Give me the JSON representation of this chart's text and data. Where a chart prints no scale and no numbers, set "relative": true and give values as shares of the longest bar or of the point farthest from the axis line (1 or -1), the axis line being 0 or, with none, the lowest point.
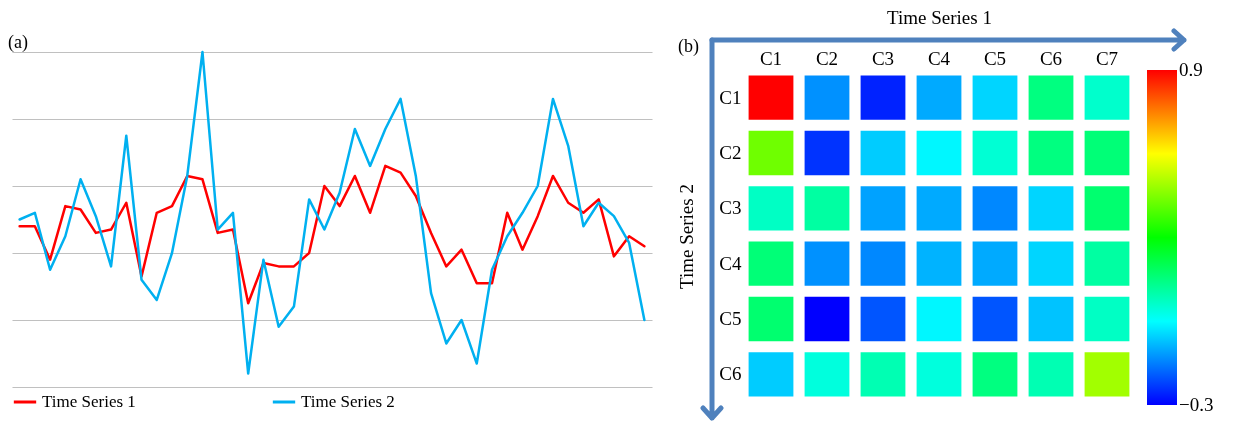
{
  "chart_data": [
    {
      "type": "line",
      "relative": true,
      "grid": "y",
      "legend": "bottom",
      "annotations": [
        "(a)"
      ],
      "categories": [
        null,
        null,
        null,
        null,
        null,
        null,
        null,
        null,
        null,
        null,
        null,
        null,
        null,
        null,
        null,
        null,
        null,
        null,
        null,
        null,
        null,
        null,
        null,
        null,
        null,
        null,
        null,
        null,
        null,
        null,
        null,
        null,
        null,
        null,
        null,
        null,
        null,
        null,
        null,
        null,
        null,
        null
      ],
      "series": [
        {
          "name": "Time Series 1",
          "color": "#ff0000",
          "values": [
            0.48,
            0.48,
            0.38,
            0.54,
            0.53,
            0.46,
            0.47,
            0.55,
            0.33,
            0.52,
            0.54,
            0.63,
            0.62,
            0.46,
            0.47,
            0.25,
            0.37,
            0.36,
            0.36,
            0.4,
            0.6,
            0.54,
            0.63,
            0.52,
            0.66,
            0.64,
            0.57,
            0.46,
            0.36,
            0.41,
            0.31,
            0.31,
            0.52,
            0.41,
            0.51,
            0.63,
            0.55,
            0.52,
            0.56,
            0.39,
            0.45,
            0.42
          ]
        },
        {
          "name": "Time Series 2",
          "color": "#00b0f0",
          "values": [
            0.5,
            0.52,
            0.35,
            0.45,
            0.62,
            0.51,
            0.36,
            0.75,
            0.32,
            0.26,
            0.4,
            0.63,
            1.0,
            0.47,
            0.52,
            0.04,
            0.38,
            0.18,
            0.24,
            0.56,
            0.47,
            0.58,
            0.77,
            0.66,
            0.77,
            0.86,
            0.63,
            0.28,
            0.13,
            0.2,
            0.07,
            0.35,
            0.45,
            0.52,
            0.6,
            0.86,
            0.72,
            0.48,
            0.55,
            0.51,
            0.43,
            0.2
          ]
        }
      ]
    },
    {
      "type": "heatmap",
      "xlabel": "Time Series 1",
      "ylabel": "Time Series 2",
      "annotations": [
        "(b)"
      ],
      "categories": [
        "C1",
        "C2",
        "C3",
        "C4",
        "C5",
        "C6",
        "C7"
      ],
      "y_categories": [
        "C1",
        "C2",
        "C3",
        "C4",
        "C5",
        "C6"
      ],
      "cells": [
        [
          0.9,
          -0.13,
          -0.26,
          -0.1,
          -0.05,
          0.15,
          0.06
        ],
        [
          0.43,
          -0.24,
          -0.06,
          -0.01,
          0.05,
          0.15,
          0.16
        ],
        [
          0.07,
          0.11,
          -0.11,
          -0.1,
          -0.14,
          -0.05,
          0.17
        ],
        [
          0.16,
          -0.13,
          -0.14,
          -0.09,
          -0.1,
          -0.05,
          0.11
        ],
        [
          0.17,
          -0.3,
          -0.2,
          -0.01,
          -0.2,
          -0.07,
          0.07
        ],
        [
          -0.06,
          0.04,
          0.09,
          0.04,
          0.15,
          0.09,
          0.49
        ]
      ],
      "clim": [
        -0.3,
        0.9
      ],
      "cticks": [
        -0.3,
        0.9
      ]
    }
  ]
}
